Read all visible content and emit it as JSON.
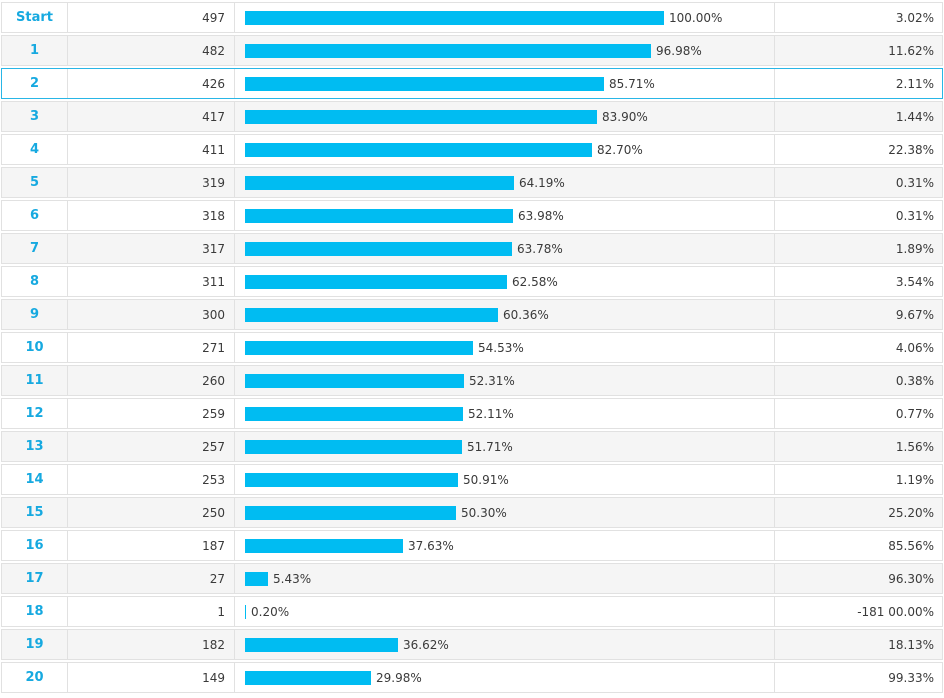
{
  "colors": {
    "bar": "#00bcf2",
    "step_label": "#16a9e0",
    "selected_border": "#29b6e6",
    "row_alt": "#f5f5f5"
  },
  "rows": [
    {
      "step": "Start",
      "count": "497",
      "percent": "100.00%",
      "fraction": 1.0,
      "drop": "3.02%"
    },
    {
      "step": "1",
      "count": "482",
      "percent": "96.98%",
      "fraction": 0.9698,
      "drop": "11.62%"
    },
    {
      "step": "2",
      "count": "426",
      "percent": "85.71%",
      "fraction": 0.8571,
      "drop": "2.11%",
      "selected": true
    },
    {
      "step": "3",
      "count": "417",
      "percent": "83.90%",
      "fraction": 0.839,
      "drop": "1.44%"
    },
    {
      "step": "4",
      "count": "411",
      "percent": "82.70%",
      "fraction": 0.827,
      "drop": "22.38%"
    },
    {
      "step": "5",
      "count": "319",
      "percent": "64.19%",
      "fraction": 0.6419,
      "drop": "0.31%"
    },
    {
      "step": "6",
      "count": "318",
      "percent": "63.98%",
      "fraction": 0.6398,
      "drop": "0.31%"
    },
    {
      "step": "7",
      "count": "317",
      "percent": "63.78%",
      "fraction": 0.6378,
      "drop": "1.89%"
    },
    {
      "step": "8",
      "count": "311",
      "percent": "62.58%",
      "fraction": 0.6258,
      "drop": "3.54%"
    },
    {
      "step": "9",
      "count": "300",
      "percent": "60.36%",
      "fraction": 0.6036,
      "drop": "9.67%"
    },
    {
      "step": "10",
      "count": "271",
      "percent": "54.53%",
      "fraction": 0.5453,
      "drop": "4.06%"
    },
    {
      "step": "11",
      "count": "260",
      "percent": "52.31%",
      "fraction": 0.5231,
      "drop": "0.38%"
    },
    {
      "step": "12",
      "count": "259",
      "percent": "52.11%",
      "fraction": 0.5211,
      "drop": "0.77%"
    },
    {
      "step": "13",
      "count": "257",
      "percent": "51.71%",
      "fraction": 0.5171,
      "drop": "1.56%"
    },
    {
      "step": "14",
      "count": "253",
      "percent": "50.91%",
      "fraction": 0.5091,
      "drop": "1.19%"
    },
    {
      "step": "15",
      "count": "250",
      "percent": "50.30%",
      "fraction": 0.503,
      "drop": "25.20%"
    },
    {
      "step": "16",
      "count": "187",
      "percent": "37.63%",
      "fraction": 0.3763,
      "drop": "85.56%"
    },
    {
      "step": "17",
      "count": "27",
      "percent": "5.43%",
      "fraction": 0.0543,
      "drop": "96.30%"
    },
    {
      "step": "18",
      "count": "1",
      "percent": "0.20%",
      "fraction": 0.002,
      "drop": "-181 00.00%"
    },
    {
      "step": "19",
      "count": "182",
      "percent": "36.62%",
      "fraction": 0.3662,
      "drop": "18.13%"
    },
    {
      "step": "20",
      "count": "149",
      "percent": "29.98%",
      "fraction": 0.2998,
      "drop": "99.33%"
    }
  ]
}
